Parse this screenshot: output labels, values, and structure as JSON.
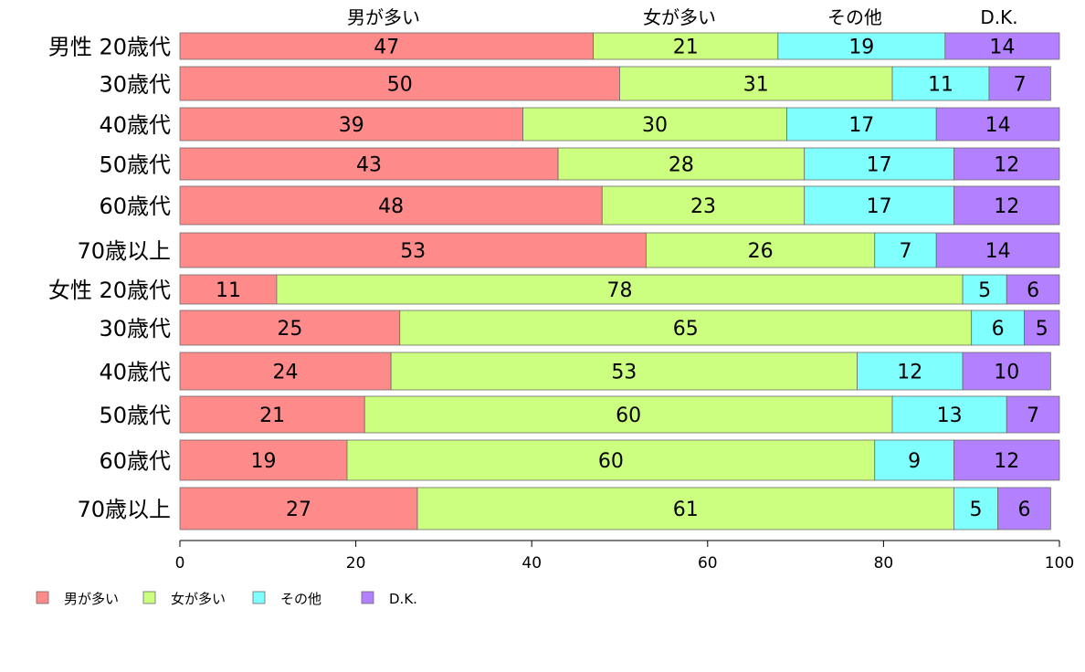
{
  "chart_data": {
    "type": "bar",
    "orientation": "horizontal",
    "stacked": true,
    "categories": [
      "男性 20歳代",
      "30歳代",
      "40歳代",
      "50歳代",
      "60歳代",
      "70歳以上",
      "女性 20歳代",
      "30歳代",
      "40歳代",
      "50歳代",
      "60歳代",
      "70歳以上"
    ],
    "series": [
      {
        "name": "男が多い",
        "color": "#ff8a8a",
        "values": [
          47,
          50,
          39,
          43,
          48,
          53,
          11,
          25,
          24,
          21,
          19,
          27
        ]
      },
      {
        "name": "女が多い",
        "color": "#ccff80",
        "values": [
          21,
          31,
          30,
          28,
          23,
          26,
          78,
          65,
          53,
          60,
          60,
          61
        ]
      },
      {
        "name": "その他",
        "color": "#80ffff",
        "values": [
          19,
          11,
          17,
          17,
          17,
          7,
          5,
          6,
          12,
          13,
          9,
          5
        ]
      },
      {
        "name": "D.K.",
        "color": "#b380ff",
        "values": [
          14,
          7,
          14,
          12,
          12,
          14,
          6,
          5,
          10,
          7,
          12,
          6
        ]
      }
    ],
    "top_labels": [
      "男が多い",
      "女が多い",
      "その他",
      "D.K."
    ],
    "xticks": [
      "0",
      "20",
      "40",
      "60",
      "80",
      "100"
    ],
    "xlim": [
      0,
      100
    ],
    "xlabel": "",
    "ylabel": "",
    "title": "",
    "grid": false,
    "legend_position": "bottom-left"
  }
}
